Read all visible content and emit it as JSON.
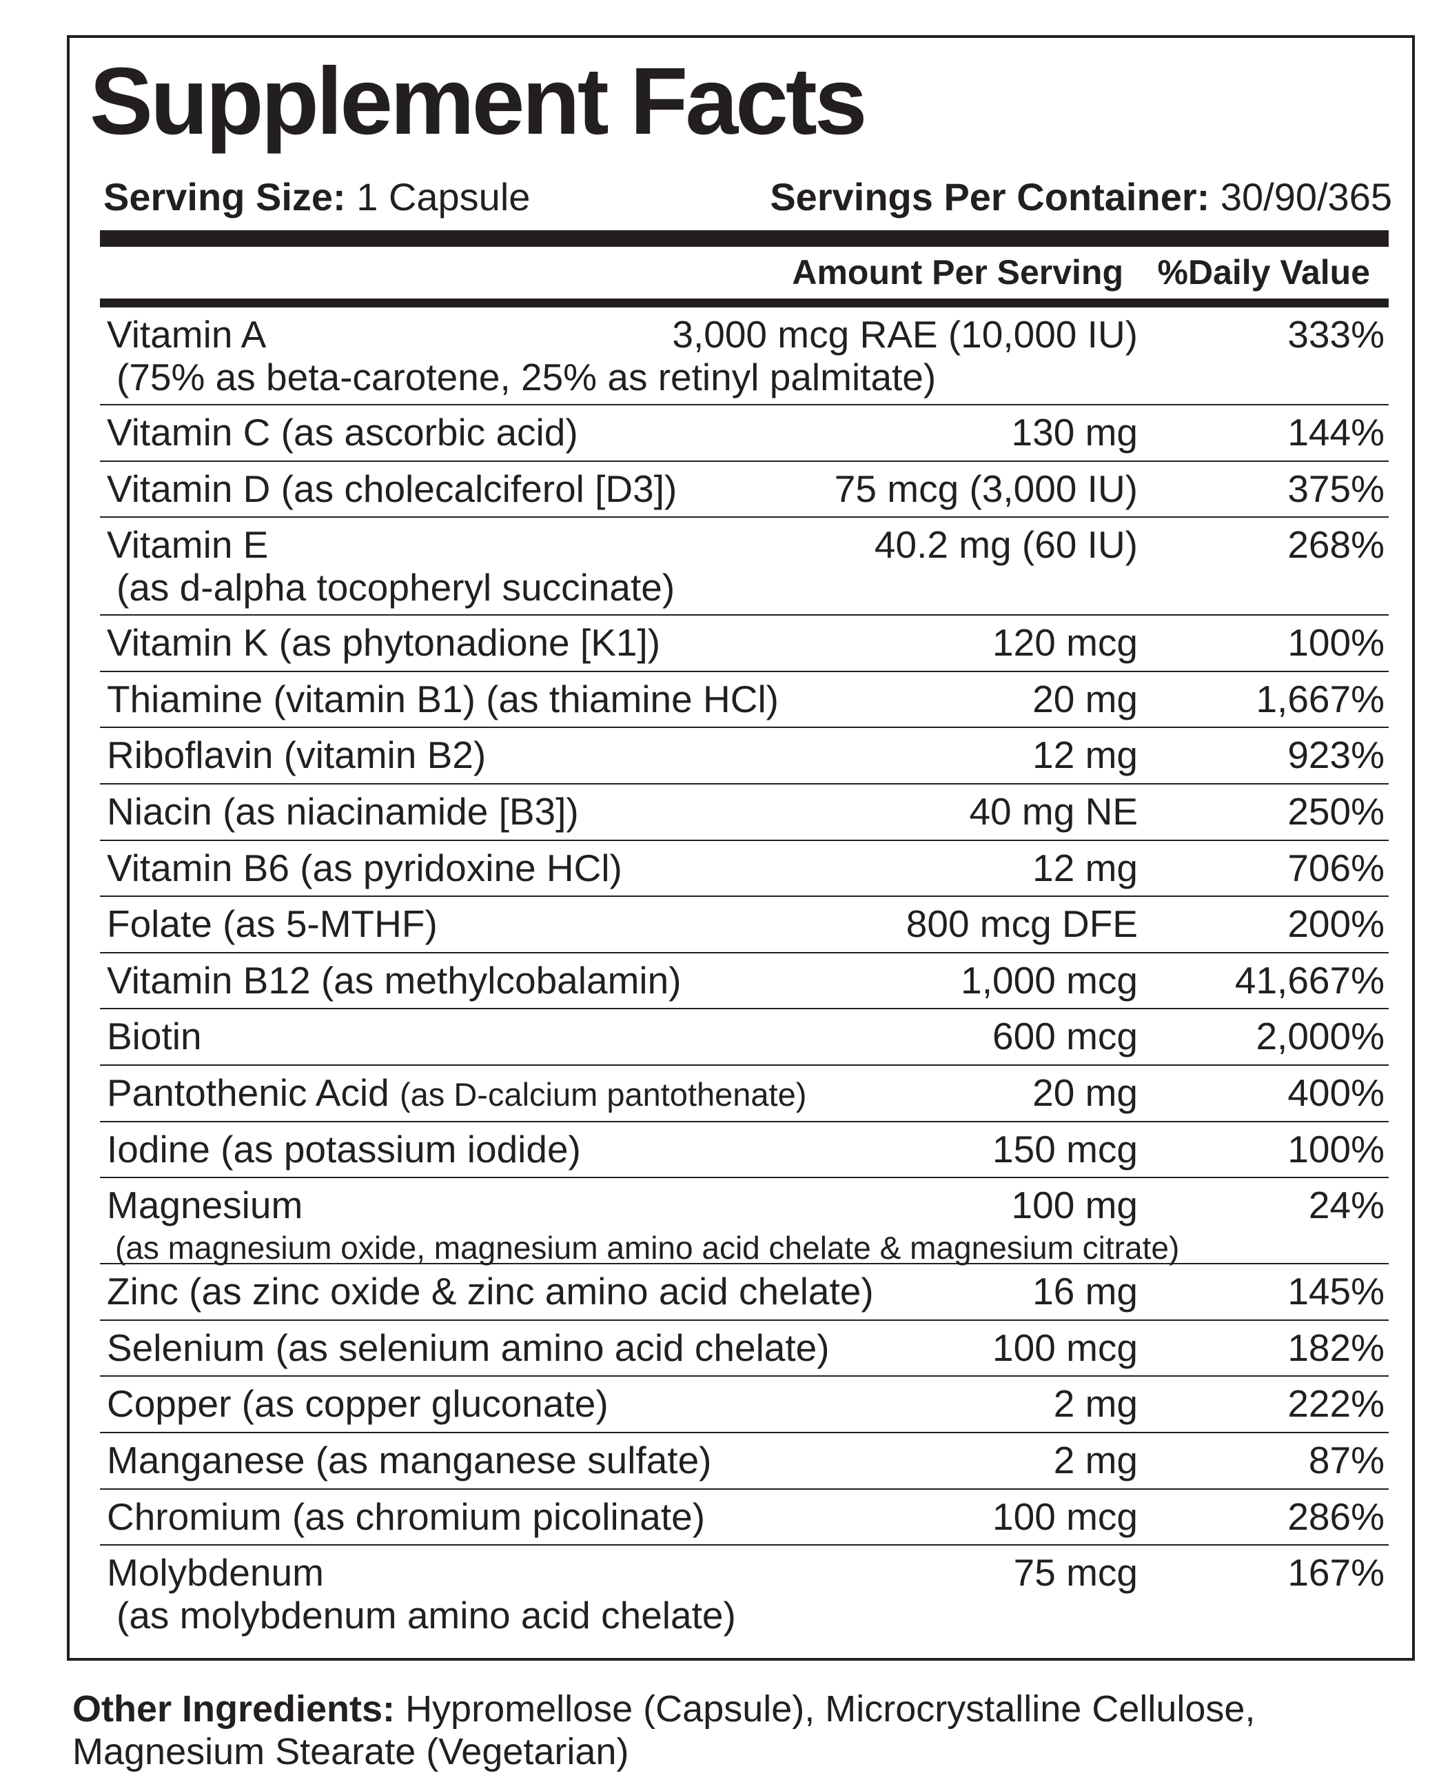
{
  "title": "Supplement Facts",
  "serving": {
    "size_label": "Serving Size:",
    "size_value": "1 Capsule",
    "per_container_label": "Servings Per Container:",
    "per_container_value": "30/90/365"
  },
  "columns": {
    "amount": "Amount Per Serving",
    "daily_value": "%Daily Value"
  },
  "nutrients": [
    {
      "name": "Vitamin A",
      "name_small": "",
      "sub": "(75% as beta-carotene, 25% as retinyl palmitate)",
      "amount": "3,000 mcg RAE (10,000 IU)",
      "dv": "333%"
    },
    {
      "name": "Vitamin C (as ascorbic acid)",
      "name_small": "",
      "sub": "",
      "amount": "130 mg",
      "dv": "144%"
    },
    {
      "name": "Vitamin D (as cholecalciferol [D3])",
      "name_small": "",
      "sub": "",
      "amount": "75 mcg (3,000 IU)",
      "dv": "375%"
    },
    {
      "name": "Vitamin E",
      "name_small": "",
      "sub": "(as d-alpha tocopheryl succinate)",
      "amount": "40.2 mg (60 IU)",
      "dv": "268%"
    },
    {
      "name": "Vitamin K (as phytonadione [K1])",
      "name_small": "",
      "sub": "",
      "amount": "120 mcg",
      "dv": "100%"
    },
    {
      "name": "Thiamine (vitamin B1) (as thiamine HCl)",
      "name_small": "",
      "sub": "",
      "amount": "20 mg",
      "dv": "1,667%"
    },
    {
      "name": "Riboflavin (vitamin B2)",
      "name_small": "",
      "sub": "",
      "amount": "12 mg",
      "dv": "923%"
    },
    {
      "name": "Niacin (as niacinamide [B3])",
      "name_small": "",
      "sub": "",
      "amount": "40 mg NE",
      "dv": "250%"
    },
    {
      "name": "Vitamin B6 (as pyridoxine HCl)",
      "name_small": "",
      "sub": "",
      "amount": "12 mg",
      "dv": "706%"
    },
    {
      "name": "Folate (as 5-MTHF)",
      "name_small": "",
      "sub": "",
      "amount": "800 mcg DFE",
      "dv": "200%"
    },
    {
      "name": "Vitamin B12 (as methylcobalamin)",
      "name_small": "",
      "sub": "",
      "amount": "1,000 mcg",
      "dv": "41,667%"
    },
    {
      "name": "Biotin",
      "name_small": "",
      "sub": "",
      "amount": "600 mcg",
      "dv": "2,000%"
    },
    {
      "name": "Pantothenic Acid",
      "name_small": "(as D-calcium pantothenate)",
      "sub": "",
      "amount": "20 mg",
      "dv": "400%"
    },
    {
      "name": "Iodine (as potassium iodide)",
      "name_small": "",
      "sub": "",
      "amount": "150 mcg",
      "dv": "100%"
    },
    {
      "name": "Magnesium",
      "name_small": "",
      "sub": "(as magnesium oxide, magnesium amino acid chelate & magnesium citrate)",
      "amount": "100 mg",
      "dv": "24%"
    },
    {
      "name": "Zinc (as zinc oxide & zinc amino acid chelate)",
      "name_small": "",
      "sub": "",
      "amount": "16 mg",
      "dv": "145%"
    },
    {
      "name": "Selenium (as selenium amino acid chelate)",
      "name_small": "",
      "sub": "",
      "amount": "100 mcg",
      "dv": "182%"
    },
    {
      "name": "Copper (as copper gluconate)",
      "name_small": "",
      "sub": "",
      "amount": "2 mg",
      "dv": "222%"
    },
    {
      "name": "Manganese (as manganese sulfate)",
      "name_small": "",
      "sub": "",
      "amount": "2 mg",
      "dv": "87%"
    },
    {
      "name": "Chromium (as chromium picolinate)",
      "name_small": "",
      "sub": "",
      "amount": "100 mcg",
      "dv": "286%"
    },
    {
      "name": "Molybdenum",
      "name_small": "",
      "sub": "(as molybdenum amino acid chelate)",
      "amount": "75 mcg",
      "dv": "167%"
    }
  ],
  "other_ingredients": {
    "label": "Other Ingredients:",
    "text": "Hypromellose (Capsule), Microcrystalline Cellulose, Magnesium Stearate (Vegetarian)"
  }
}
